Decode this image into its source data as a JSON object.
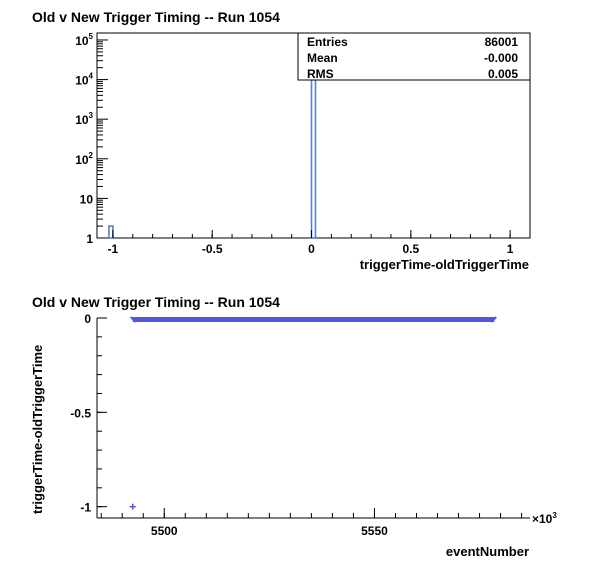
{
  "chart_data": [
    {
      "type": "histogram",
      "title": "Old v New Trigger Timing -- Run 1054",
      "xlabel": "triggerTime-oldTriggerTime",
      "ylabel": "",
      "xlim": [
        -1.08,
        1.1
      ],
      "ylim": [
        1,
        150000
      ],
      "y_scale": "log",
      "x_ticks": [
        -1,
        -0.5,
        0,
        0.5,
        1
      ],
      "x_tick_labels": [
        "-1",
        "-0.5",
        "0",
        "0.5",
        "1"
      ],
      "y_ticks": [
        1,
        10,
        100,
        1000,
        10000,
        100000
      ],
      "y_tick_labels": [
        {
          "base": "1",
          "exp": ""
        },
        {
          "base": "10",
          "exp": ""
        },
        {
          "base": "10",
          "exp": "2"
        },
        {
          "base": "10",
          "exp": "3"
        },
        {
          "base": "10",
          "exp": "4"
        },
        {
          "base": "10",
          "exp": "5"
        }
      ],
      "bins": [
        {
          "x0": -1.02,
          "x1": -1.0,
          "count": 2
        },
        {
          "x0": 0.0,
          "x1": 0.02,
          "count": 86000
        }
      ],
      "color": "#5b7fc4",
      "stats": [
        {
          "label": "Entries",
          "value": "86001"
        },
        {
          "label": "Mean",
          "value": "-0.000"
        },
        {
          "label": "RMS",
          "value": "0.005"
        }
      ],
      "stats_placement": "top-right",
      "grid": false
    },
    {
      "type": "scatter",
      "title": "Old v New Trigger Timing -- Run 1054",
      "xlabel": "eventNumber",
      "ylabel": "triggerTime-oldTriggerTime",
      "x_exponent_label": "×10",
      "x_exponent": "3",
      "xlim": [
        5484,
        5587
      ],
      "ylim": [
        -1.06,
        0.0
      ],
      "x_ticks": [
        5500,
        5550
      ],
      "x_tick_labels": [
        "5500",
        "5550"
      ],
      "y_ticks": [
        0,
        -0.5,
        -1
      ],
      "y_tick_labels": [
        "0",
        "-0.5",
        "-1"
      ],
      "band": {
        "x_start": 5492.5,
        "x_end": 5578.5,
        "y": 0.0
      },
      "points": [
        {
          "x": 5492.5,
          "y": -1.0
        }
      ],
      "color": "#5555dd",
      "grid": false
    }
  ]
}
